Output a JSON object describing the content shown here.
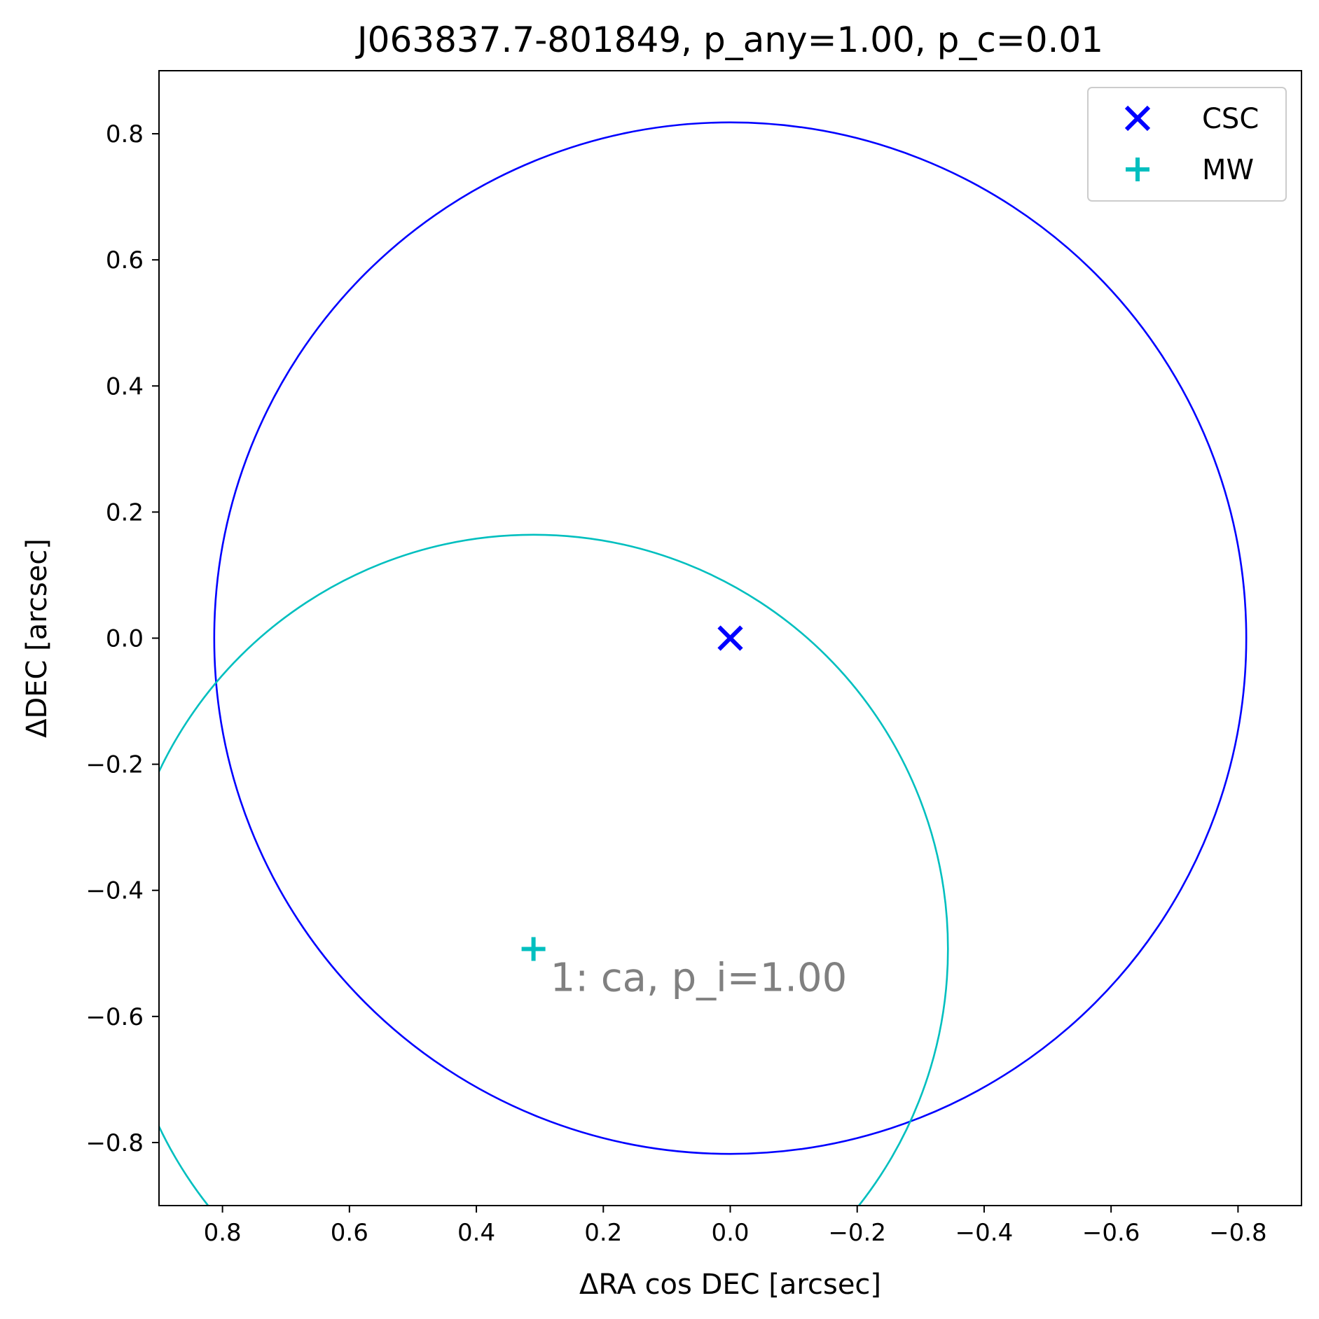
{
  "chart_data": {
    "type": "scatter",
    "title": "J063837.7-801849, p_any=1.00, p_c=0.01",
    "xlabel": "ΔRA cos DEC [arcsec]",
    "ylabel": "ΔDEC [arcsec]",
    "xlim": [
      0.9,
      -0.9
    ],
    "ylim": [
      -0.9,
      0.9
    ],
    "x_inverted": true,
    "grid": false,
    "legend_position": "top-right",
    "xticks": [
      0.8,
      0.6,
      0.4,
      0.2,
      0.0,
      -0.2,
      -0.4,
      -0.6,
      -0.8
    ],
    "xtick_labels": [
      "0.8",
      "0.6",
      "0.4",
      "0.2",
      "0.0",
      "−0.2",
      "−0.4",
      "−0.6",
      "−0.8"
    ],
    "yticks": [
      0.8,
      0.6,
      0.4,
      0.2,
      0.0,
      -0.2,
      -0.4,
      -0.6,
      -0.8
    ],
    "ytick_labels": [
      "0.8",
      "0.6",
      "0.4",
      "0.2",
      "0.0",
      "−0.2",
      "−0.4",
      "−0.6",
      "−0.8"
    ],
    "series": [
      {
        "name": "CSC",
        "marker": "x",
        "color": "#0000ff",
        "x": [
          0.0
        ],
        "y": [
          0.0
        ],
        "radius": 0.813
      },
      {
        "name": "MW",
        "marker": "+",
        "color": "#00bfbf",
        "x": [
          0.31
        ],
        "y": [
          -0.493
        ],
        "radius": 0.653
      }
    ],
    "annotations": [
      {
        "text": "1: ca, p_i=1.00",
        "x": 0.31,
        "y": -0.493,
        "color": "#808080"
      }
    ]
  }
}
